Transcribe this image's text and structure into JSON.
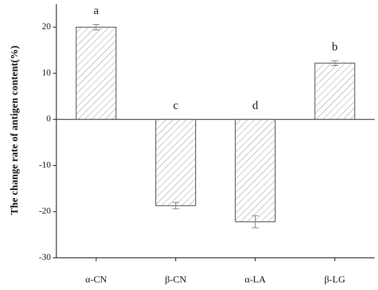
{
  "chart_data": {
    "type": "bar",
    "y_label": "The change rate of antigen content(%)",
    "categories": [
      "α-CN",
      "β-CN",
      "α-LA",
      "β-LG"
    ],
    "values": [
      20.0,
      -18.7,
      -22.2,
      12.2
    ],
    "errors": [
      0.6,
      0.7,
      1.3,
      0.5
    ],
    "annotations": [
      "a",
      "c",
      "d",
      "b"
    ],
    "color": "#555555",
    "ylim": [
      -30,
      25
    ],
    "yticks": [
      -30,
      -20,
      -10,
      0,
      10,
      20
    ]
  }
}
